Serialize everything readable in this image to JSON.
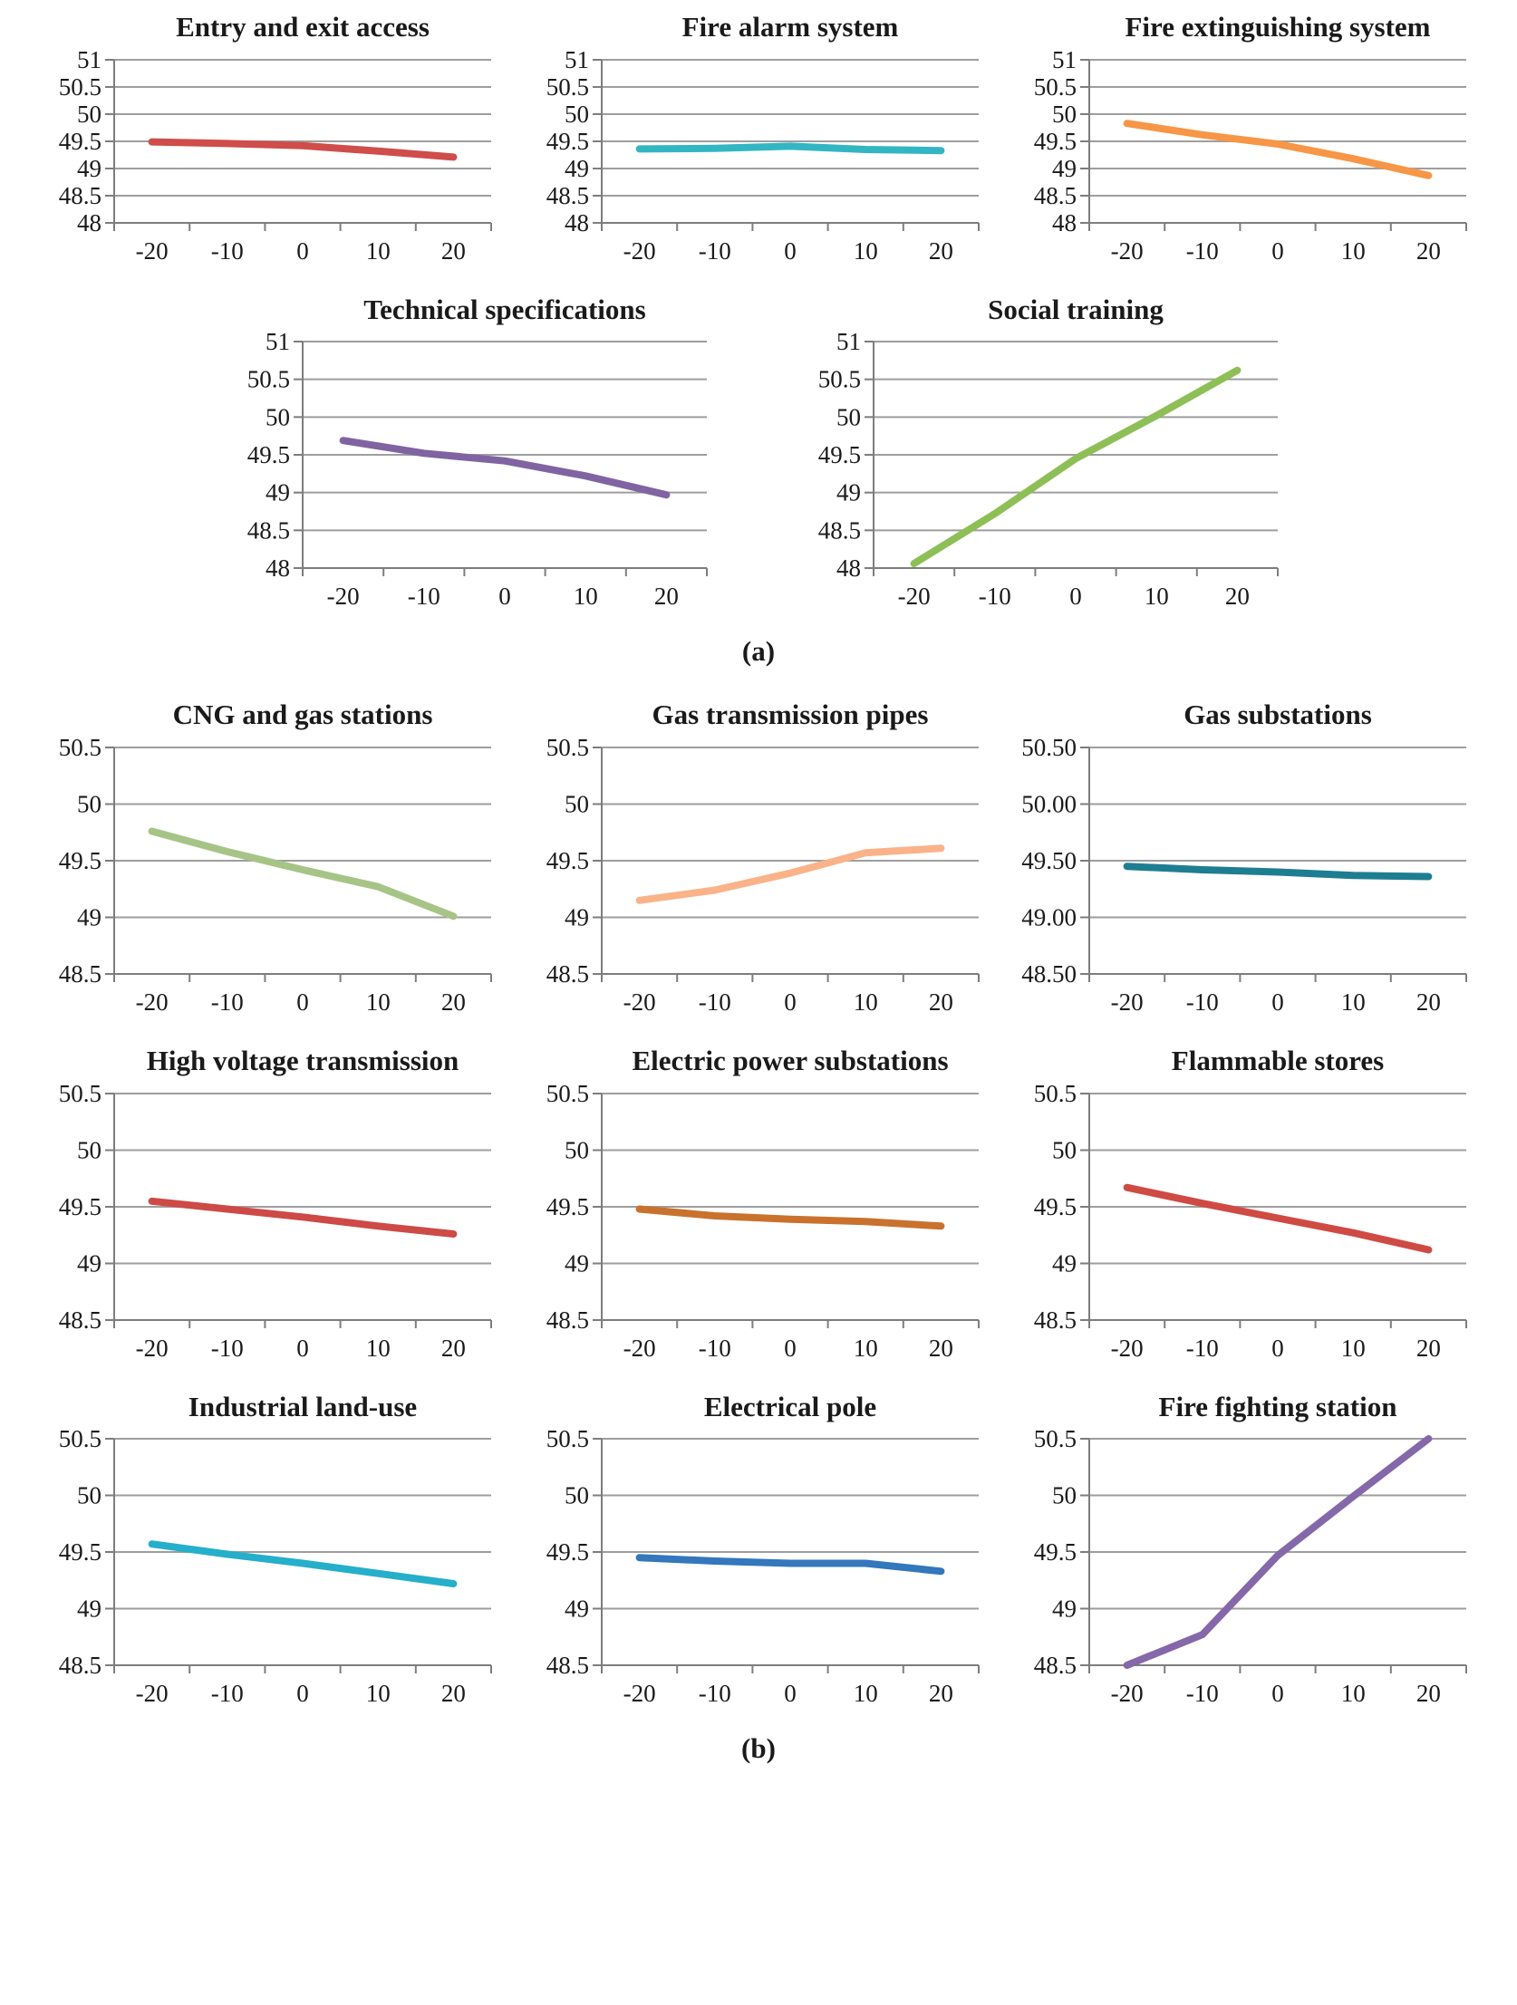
{
  "figure": {
    "section_labels": {
      "a": "(a)",
      "b": "(b)"
    },
    "axis": {
      "x_label_values": [
        "-20",
        "-10",
        "0",
        "10",
        "20"
      ],
      "grid_color": "#9e9e9e",
      "axis_color": "#7d7d7d"
    }
  },
  "chart_data": [
    {
      "id": "entry-exit-access",
      "type": "line",
      "title": "Entry and exit access",
      "x": [
        -20,
        -10,
        0,
        10,
        20
      ],
      "x_ticks": [
        "-20",
        "-10",
        "0",
        "10",
        "20"
      ],
      "values": [
        49.49,
        49.46,
        49.42,
        49.32,
        49.21
      ],
      "ylim": [
        48,
        51
      ],
      "y_ticks": [
        "51",
        "50.5",
        "50",
        "49.5",
        "49",
        "48.5",
        "48"
      ],
      "color": "#cf4d4a",
      "grid": true,
      "legend": "none"
    },
    {
      "id": "fire-alarm-system",
      "type": "line",
      "title": "Fire alarm system",
      "x": [
        -20,
        -10,
        0,
        10,
        20
      ],
      "x_ticks": [
        "-20",
        "-10",
        "0",
        "10",
        "20"
      ],
      "values": [
        49.36,
        49.37,
        49.41,
        49.35,
        49.33
      ],
      "ylim": [
        48,
        51
      ],
      "y_ticks": [
        "51",
        "50.5",
        "50",
        "49.5",
        "49",
        "48.5",
        "48"
      ],
      "color": "#33b6c3",
      "grid": true,
      "legend": "none"
    },
    {
      "id": "fire-extinguishing-system",
      "type": "line",
      "title": "Fire extinguishing system",
      "x": [
        -20,
        -10,
        0,
        10,
        20
      ],
      "x_ticks": [
        "-20",
        "-10",
        "0",
        "10",
        "20"
      ],
      "values": [
        49.83,
        49.62,
        49.45,
        49.18,
        48.87
      ],
      "ylim": [
        48,
        51
      ],
      "y_ticks": [
        "51",
        "50.5",
        "50",
        "49.5",
        "49",
        "48.5",
        "48"
      ],
      "color": "#f79646",
      "grid": true,
      "legend": "none"
    },
    {
      "id": "technical-specifications",
      "type": "line",
      "title": "Technical specifications",
      "x": [
        -20,
        -10,
        0,
        10,
        20
      ],
      "x_ticks": [
        "-20",
        "-10",
        "0",
        "10",
        "20"
      ],
      "values": [
        49.69,
        49.52,
        49.42,
        49.22,
        48.97
      ],
      "ylim": [
        48,
        51
      ],
      "y_ticks": [
        "51",
        "50.5",
        "50",
        "49.5",
        "49",
        "48.5",
        "48"
      ],
      "color": "#8064a2",
      "grid": true,
      "legend": "none"
    },
    {
      "id": "social-training",
      "type": "line",
      "title": "Social training",
      "x": [
        -20,
        -10,
        0,
        10,
        20
      ],
      "x_ticks": [
        "-20",
        "-10",
        "0",
        "10",
        "20"
      ],
      "values": [
        48.06,
        48.72,
        49.45,
        50.02,
        50.62
      ],
      "ylim": [
        48,
        51
      ],
      "y_ticks": [
        "51",
        "50.5",
        "50",
        "49.5",
        "49",
        "48.5",
        "48"
      ],
      "color": "#8ebf56",
      "grid": true,
      "legend": "none"
    },
    {
      "id": "cng-gas-stations",
      "type": "line",
      "title": "CNG and gas stations",
      "x": [
        -20,
        -10,
        0,
        10,
        20
      ],
      "x_ticks": [
        "-20",
        "-10",
        "0",
        "10",
        "20"
      ],
      "values": [
        49.76,
        49.58,
        49.42,
        49.27,
        49.01
      ],
      "ylim": [
        48.5,
        50.5
      ],
      "y_ticks": [
        "50.5",
        "50",
        "49.5",
        "49",
        "48.5"
      ],
      "color": "#a7c487",
      "grid": true,
      "legend": "none"
    },
    {
      "id": "gas-transmission-pipes",
      "type": "line",
      "title": "Gas transmission pipes",
      "x": [
        -20,
        -10,
        0,
        10,
        20
      ],
      "x_ticks": [
        "-20",
        "-10",
        "0",
        "10",
        "20"
      ],
      "values": [
        49.15,
        49.24,
        49.39,
        49.57,
        49.61
      ],
      "ylim": [
        48.5,
        50.5
      ],
      "y_ticks": [
        "50.5",
        "50",
        "49.5",
        "49",
        "48.5"
      ],
      "color": "#fab389",
      "grid": true,
      "legend": "none"
    },
    {
      "id": "gas-substations",
      "type": "line",
      "title": "Gas substations",
      "x": [
        -20,
        -10,
        0,
        10,
        20
      ],
      "x_ticks": [
        "-20",
        "-10",
        "0",
        "10",
        "20"
      ],
      "values": [
        49.45,
        49.42,
        49.4,
        49.37,
        49.36
      ],
      "ylim": [
        48.5,
        50.5
      ],
      "y_ticks": [
        "50.50",
        "50.00",
        "49.50",
        "49.00",
        "48.50"
      ],
      "color": "#1e7e91",
      "grid": true,
      "legend": "none"
    },
    {
      "id": "high-voltage-transmission",
      "type": "line",
      "title": "High voltage transmission",
      "x": [
        -20,
        -10,
        0,
        10,
        20
      ],
      "x_ticks": [
        "-20",
        "-10",
        "0",
        "10",
        "20"
      ],
      "values": [
        49.55,
        49.48,
        49.41,
        49.33,
        49.26
      ],
      "ylim": [
        48.5,
        50.5
      ],
      "y_ticks": [
        "50.5",
        "50",
        "49.5",
        "49",
        "48.5"
      ],
      "color": "#cd4a47",
      "grid": true,
      "legend": "none"
    },
    {
      "id": "electric-power-substations",
      "type": "line",
      "title": "Electric power substations",
      "x": [
        -20,
        -10,
        0,
        10,
        20
      ],
      "x_ticks": [
        "-20",
        "-10",
        "0",
        "10",
        "20"
      ],
      "values": [
        49.48,
        49.42,
        49.39,
        49.37,
        49.33
      ],
      "ylim": [
        48.5,
        50.5
      ],
      "y_ticks": [
        "50.5",
        "50",
        "49.5",
        "49",
        "48.5"
      ],
      "color": "#c9722e",
      "grid": true,
      "legend": "none"
    },
    {
      "id": "flammable-stores",
      "type": "line",
      "title": "Flammable stores",
      "x": [
        -20,
        -10,
        0,
        10,
        20
      ],
      "x_ticks": [
        "-20",
        "-10",
        "0",
        "10",
        "20"
      ],
      "values": [
        49.67,
        49.53,
        49.4,
        49.27,
        49.12
      ],
      "ylim": [
        48.5,
        50.5
      ],
      "y_ticks": [
        "50.5",
        "50",
        "49.5",
        "49",
        "48.5"
      ],
      "color": "#d04a44",
      "grid": true,
      "legend": "none"
    },
    {
      "id": "industrial-land-use",
      "type": "line",
      "title": "Industrial land-use",
      "x": [
        -20,
        -10,
        0,
        10,
        20
      ],
      "x_ticks": [
        "-20",
        "-10",
        "0",
        "10",
        "20"
      ],
      "values": [
        49.57,
        49.48,
        49.4,
        49.31,
        49.22
      ],
      "ylim": [
        48.5,
        50.5
      ],
      "y_ticks": [
        "50.5",
        "50",
        "49.5",
        "49",
        "48.5"
      ],
      "color": "#25afca",
      "grid": true,
      "legend": "none"
    },
    {
      "id": "electrical-pole",
      "type": "line",
      "title": "Electrical pole",
      "x": [
        -20,
        -10,
        0,
        10,
        20
      ],
      "x_ticks": [
        "-20",
        "-10",
        "0",
        "10",
        "20"
      ],
      "values": [
        49.45,
        49.42,
        49.4,
        49.4,
        49.33
      ],
      "ylim": [
        48.5,
        50.5
      ],
      "y_ticks": [
        "50.5",
        "50",
        "49.5",
        "49",
        "48.5"
      ],
      "color": "#3377bd",
      "grid": true,
      "legend": "none"
    },
    {
      "id": "fire-fighting-station",
      "type": "line",
      "title": "Fire fighting station",
      "x": [
        -20,
        -10,
        0,
        10,
        20
      ],
      "x_ticks": [
        "-20",
        "-10",
        "0",
        "10",
        "20"
      ],
      "values": [
        48.5,
        48.77,
        49.47,
        49.99,
        50.5
      ],
      "ylim": [
        48.5,
        50.5
      ],
      "y_ticks": [
        "50.5",
        "50",
        "49.5",
        "49",
        "48.5"
      ],
      "color": "#8568a9",
      "grid": true,
      "legend": "none"
    }
  ]
}
